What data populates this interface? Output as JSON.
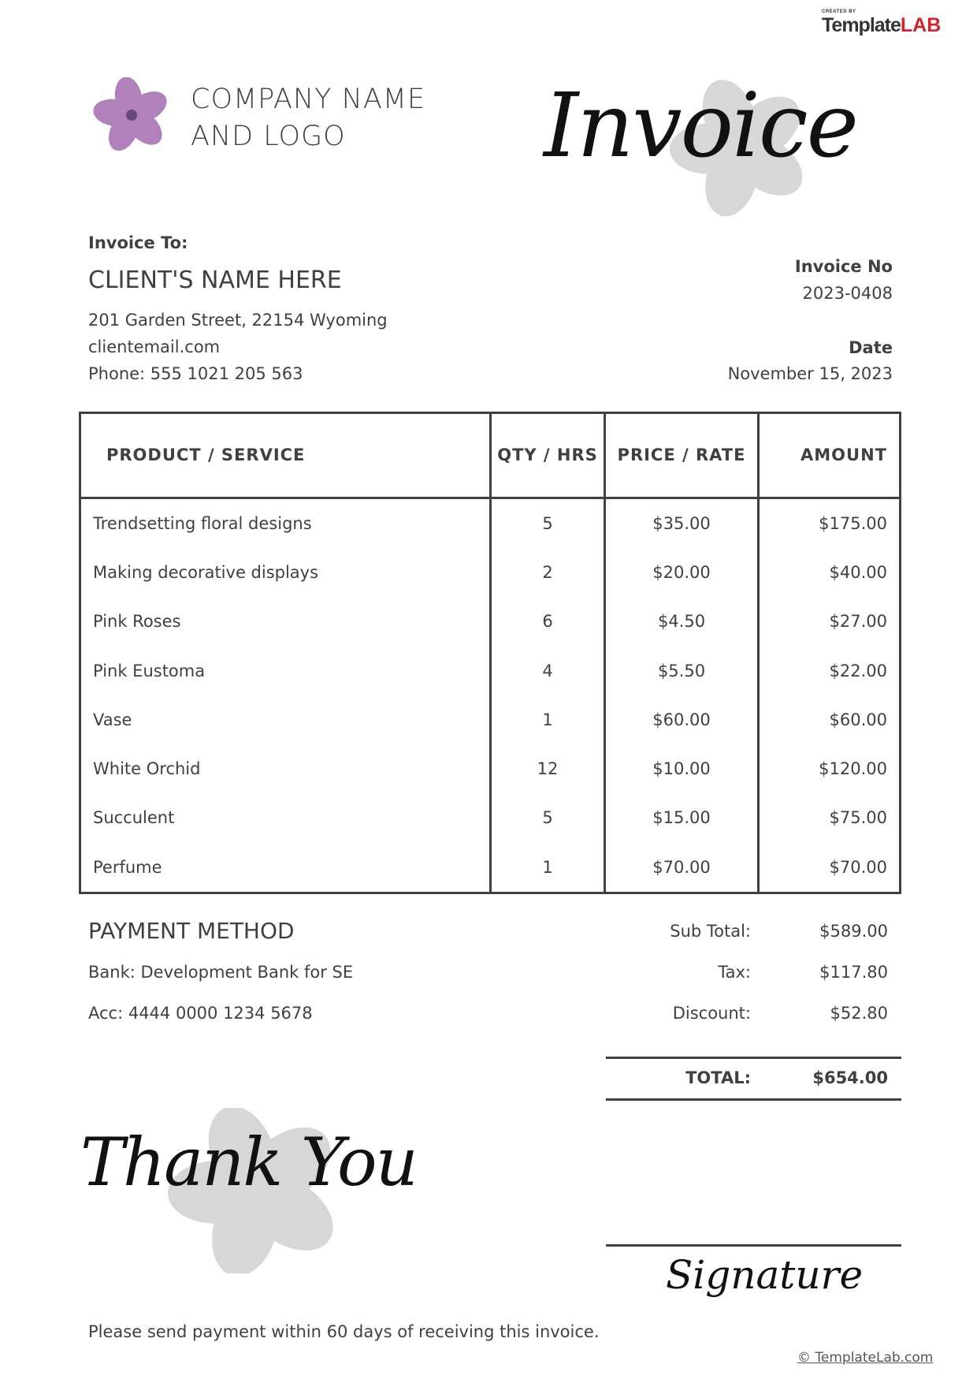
{
  "brand": {
    "created_by": "CREATED BY",
    "name_a": "Template",
    "name_b": "LAB",
    "accent": "#d0232a"
  },
  "company": {
    "line1": "COMPANY NAME",
    "line2": "AND LOGO"
  },
  "title": "Invoice",
  "client": {
    "label": "Invoice To:",
    "name": "CLIENT'S NAME HERE",
    "address": "201 Garden Street, 22154 Wyoming",
    "email": "clientemail.com",
    "phone": "Phone: 555 1021 205 563"
  },
  "meta": {
    "invoice_no_label": "Invoice No",
    "invoice_no": "2023-0408",
    "date_label": "Date",
    "date": "November 15, 2023"
  },
  "table": {
    "headers": [
      "PRODUCT / SERVICE",
      "QTY / HRS",
      "PRICE / RATE",
      "AMOUNT"
    ],
    "rows": [
      [
        "Trendsetting floral designs",
        "5",
        "$35.00",
        "$175.00"
      ],
      [
        "Making decorative displays",
        "2",
        "$20.00",
        "$40.00"
      ],
      [
        "Pink Roses",
        "6",
        "$4.50",
        "$27.00"
      ],
      [
        "Pink Eustoma",
        "4",
        "$5.50",
        "$22.00"
      ],
      [
        "Vase",
        "1",
        "$60.00",
        "$60.00"
      ],
      [
        "White Orchid",
        "12",
        "$10.00",
        "$120.00"
      ],
      [
        "Succulent",
        "5",
        "$15.00",
        "$75.00"
      ],
      [
        "Perfume",
        "1",
        "$70.00",
        "$70.00"
      ]
    ]
  },
  "payment": {
    "title": "PAYMENT METHOD",
    "bank": "Bank: Development Bank for SE",
    "account": "Acc: 4444 0000 1234 5678"
  },
  "totals": {
    "subtotal_label": "Sub Total:",
    "subtotal": "$589.00",
    "tax_label": "Tax:",
    "tax": "$117.80",
    "discount_label": "Discount:",
    "discount": "$52.80",
    "total_label": "TOTAL:",
    "total": "$654.00"
  },
  "thank_you": "Thank You",
  "signature": "Signature",
  "note": "Please send payment within 60 days of receiving this invoice.",
  "copyright": "© TemplateLab.com"
}
